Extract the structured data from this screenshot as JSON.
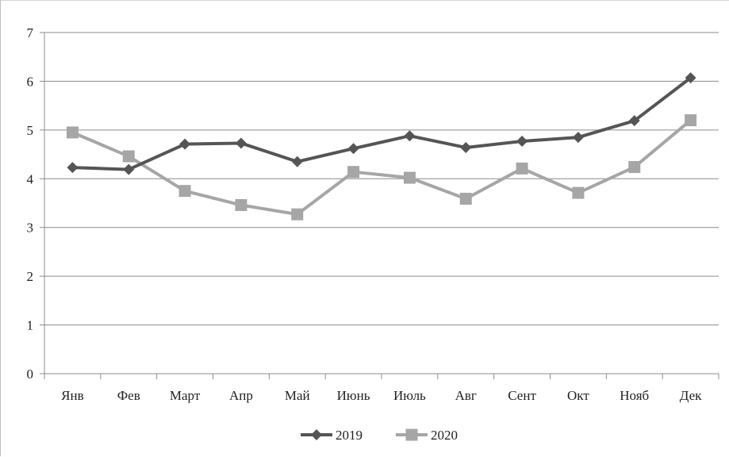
{
  "chart_data": {
    "type": "line",
    "title": "",
    "xlabel": "",
    "ylabel": "",
    "categories": [
      "Янв",
      "Фев",
      "Март",
      "Апр",
      "Май",
      "Июнь",
      "Июль",
      "Авг",
      "Сент",
      "Окт",
      "Нояб",
      "Дек"
    ],
    "ylim": [
      0,
      7
    ],
    "yticks": [
      "0",
      "1",
      "2",
      "3",
      "4",
      "5",
      "6",
      "7"
    ],
    "grid": "horizontal",
    "legend_position": "bottom-center",
    "series": [
      {
        "name": "2019",
        "marker": "diamond",
        "color": "#555555",
        "values": [
          4.23,
          4.19,
          4.71,
          4.73,
          4.35,
          4.62,
          4.88,
          4.64,
          4.77,
          4.85,
          5.19,
          6.07
        ]
      },
      {
        "name": "2020",
        "marker": "square",
        "color": "#a6a6a6",
        "values": [
          4.95,
          4.46,
          3.75,
          3.46,
          3.27,
          4.14,
          4.02,
          3.59,
          4.21,
          3.71,
          4.24,
          5.2
        ]
      }
    ]
  }
}
